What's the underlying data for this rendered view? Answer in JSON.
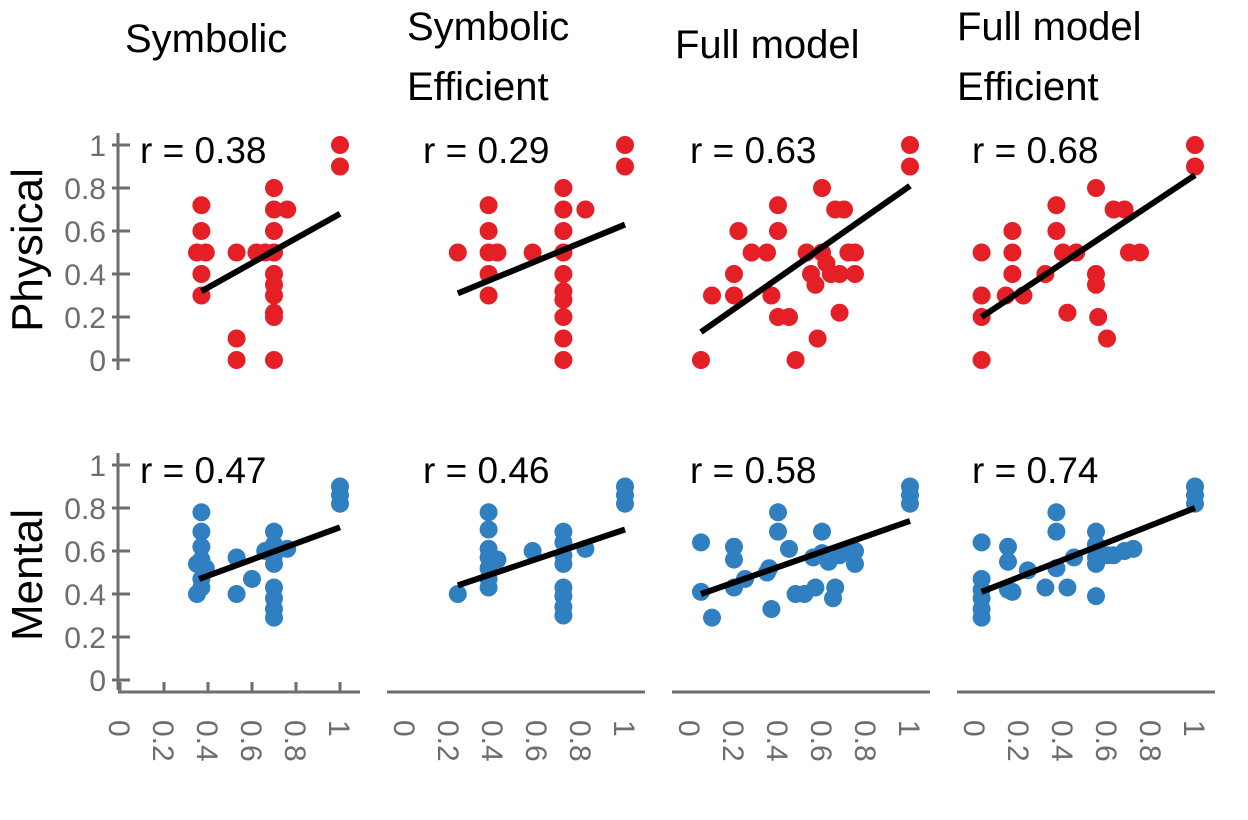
{
  "chart_data": {
    "type": "scatter",
    "columns": [
      "Symbolic",
      "Symbolic Efficient",
      "Full model",
      "Full model Efficient"
    ],
    "column_titles": [
      [
        "Symbolic"
      ],
      [
        "Symbolic",
        "Efficient"
      ],
      [
        "Full model"
      ],
      [
        "Full model",
        "Efficient"
      ]
    ],
    "rows": [
      "Physical",
      "Mental"
    ],
    "colors": {
      "Physical": "#e41f26",
      "Mental": "#2f7fc1",
      "fit": "#000000",
      "axis": "#6d6d6d"
    },
    "xlim": [
      0,
      1
    ],
    "ylim": [
      0,
      1
    ],
    "xticks": [
      "0",
      "0.2",
      "0.4",
      "0.6",
      "0.8",
      "1"
    ],
    "yticks": [
      "0",
      "0.2",
      "0.4",
      "0.6",
      "0.8",
      "1"
    ],
    "panels": [
      {
        "row": "Physical",
        "column": "Symbolic",
        "r_label": "r = 0.38",
        "fit": [
          [
            0.37,
            0.32
          ],
          [
            1.0,
            0.68
          ]
        ],
        "points": [
          [
            1.0,
            1.0
          ],
          [
            1.0,
            0.9
          ],
          [
            0.37,
            0.72
          ],
          [
            0.37,
            0.6
          ],
          [
            0.35,
            0.5
          ],
          [
            0.39,
            0.5
          ],
          [
            0.37,
            0.4
          ],
          [
            0.37,
            0.3
          ],
          [
            0.53,
            0.5
          ],
          [
            0.62,
            0.5
          ],
          [
            0.66,
            0.5
          ],
          [
            0.7,
            0.5
          ],
          [
            0.53,
            0.1
          ],
          [
            0.53,
            0.0
          ],
          [
            0.7,
            0.8
          ],
          [
            0.7,
            0.7
          ],
          [
            0.76,
            0.7
          ],
          [
            0.7,
            0.6
          ],
          [
            0.7,
            0.4
          ],
          [
            0.7,
            0.35
          ],
          [
            0.7,
            0.3
          ],
          [
            0.7,
            0.22
          ],
          [
            0.7,
            0.2
          ],
          [
            0.7,
            0.0
          ]
        ]
      },
      {
        "row": "Physical",
        "column": "Symbolic Efficient",
        "r_label": "r = 0.29",
        "fit": [
          [
            0.24,
            0.31
          ],
          [
            1.0,
            0.63
          ]
        ],
        "points": [
          [
            1.0,
            1.0
          ],
          [
            1.0,
            0.9
          ],
          [
            0.38,
            0.72
          ],
          [
            0.38,
            0.6
          ],
          [
            0.38,
            0.5
          ],
          [
            0.42,
            0.5
          ],
          [
            0.38,
            0.4
          ],
          [
            0.38,
            0.3
          ],
          [
            0.24,
            0.5
          ],
          [
            0.58,
            0.5
          ],
          [
            0.72,
            0.8
          ],
          [
            0.72,
            0.7
          ],
          [
            0.82,
            0.7
          ],
          [
            0.72,
            0.6
          ],
          [
            0.72,
            0.5
          ],
          [
            0.72,
            0.4
          ],
          [
            0.72,
            0.32
          ],
          [
            0.72,
            0.28
          ],
          [
            0.72,
            0.2
          ],
          [
            0.72,
            0.1
          ],
          [
            0.72,
            0.0
          ]
        ]
      },
      {
        "row": "Physical",
        "column": "Full model",
        "r_label": "r = 0.63",
        "fit": [
          [
            0.05,
            0.13
          ],
          [
            1.0,
            0.81
          ]
        ],
        "points": [
          [
            1.0,
            1.0
          ],
          [
            1.0,
            0.9
          ],
          [
            0.05,
            0.0
          ],
          [
            0.1,
            0.3
          ],
          [
            0.2,
            0.4
          ],
          [
            0.2,
            0.3
          ],
          [
            0.22,
            0.6
          ],
          [
            0.28,
            0.5
          ],
          [
            0.35,
            0.5
          ],
          [
            0.37,
            0.3
          ],
          [
            0.4,
            0.2
          ],
          [
            0.45,
            0.2
          ],
          [
            0.4,
            0.72
          ],
          [
            0.4,
            0.6
          ],
          [
            0.48,
            0.0
          ],
          [
            0.53,
            0.5
          ],
          [
            0.55,
            0.4
          ],
          [
            0.57,
            0.35
          ],
          [
            0.58,
            0.1
          ],
          [
            0.6,
            0.8
          ],
          [
            0.6,
            0.5
          ],
          [
            0.62,
            0.45
          ],
          [
            0.64,
            0.4
          ],
          [
            0.66,
            0.7
          ],
          [
            0.68,
            0.4
          ],
          [
            0.7,
            0.7
          ],
          [
            0.72,
            0.5
          ],
          [
            0.68,
            0.22
          ],
          [
            0.75,
            0.5
          ],
          [
            0.75,
            0.4
          ]
        ]
      },
      {
        "row": "Physical",
        "column": "Full model Efficient",
        "r_label": "r = 0.68",
        "fit": [
          [
            0.03,
            0.2
          ],
          [
            1.0,
            0.86
          ]
        ],
        "points": [
          [
            1.0,
            1.0
          ],
          [
            1.0,
            0.9
          ],
          [
            0.03,
            0.0
          ],
          [
            0.03,
            0.2
          ],
          [
            0.03,
            0.3
          ],
          [
            0.03,
            0.5
          ],
          [
            0.14,
            0.3
          ],
          [
            0.17,
            0.6
          ],
          [
            0.17,
            0.5
          ],
          [
            0.17,
            0.4
          ],
          [
            0.22,
            0.3
          ],
          [
            0.32,
            0.4
          ],
          [
            0.37,
            0.72
          ],
          [
            0.37,
            0.6
          ],
          [
            0.4,
            0.5
          ],
          [
            0.46,
            0.5
          ],
          [
            0.42,
            0.22
          ],
          [
            0.55,
            0.8
          ],
          [
            0.55,
            0.4
          ],
          [
            0.55,
            0.35
          ],
          [
            0.56,
            0.2
          ],
          [
            0.6,
            0.1
          ],
          [
            0.63,
            0.7
          ],
          [
            0.68,
            0.7
          ],
          [
            0.7,
            0.5
          ],
          [
            0.75,
            0.5
          ]
        ]
      },
      {
        "row": "Mental",
        "column": "Symbolic",
        "r_label": "r = 0.47",
        "fit": [
          [
            0.36,
            0.47
          ],
          [
            1.0,
            0.71
          ]
        ],
        "points": [
          [
            1.0,
            0.9
          ],
          [
            1.0,
            0.86
          ],
          [
            1.0,
            0.82
          ],
          [
            0.37,
            0.78
          ],
          [
            0.37,
            0.69
          ],
          [
            0.37,
            0.62
          ],
          [
            0.37,
            0.56
          ],
          [
            0.35,
            0.54
          ],
          [
            0.39,
            0.52
          ],
          [
            0.37,
            0.47
          ],
          [
            0.37,
            0.43
          ],
          [
            0.35,
            0.4
          ],
          [
            0.53,
            0.57
          ],
          [
            0.53,
            0.4
          ],
          [
            0.6,
            0.47
          ],
          [
            0.66,
            0.6
          ],
          [
            0.7,
            0.69
          ],
          [
            0.7,
            0.63
          ],
          [
            0.7,
            0.58
          ],
          [
            0.7,
            0.54
          ],
          [
            0.7,
            0.43
          ],
          [
            0.7,
            0.38
          ],
          [
            0.7,
            0.33
          ],
          [
            0.7,
            0.29
          ],
          [
            0.76,
            0.61
          ]
        ]
      },
      {
        "row": "Mental",
        "column": "Symbolic Efficient",
        "r_label": "r = 0.46",
        "fit": [
          [
            0.24,
            0.44
          ],
          [
            1.0,
            0.7
          ]
        ],
        "points": [
          [
            1.0,
            0.9
          ],
          [
            1.0,
            0.86
          ],
          [
            1.0,
            0.82
          ],
          [
            0.38,
            0.78
          ],
          [
            0.38,
            0.7
          ],
          [
            0.38,
            0.61
          ],
          [
            0.38,
            0.57
          ],
          [
            0.42,
            0.56
          ],
          [
            0.38,
            0.52
          ],
          [
            0.38,
            0.47
          ],
          [
            0.38,
            0.43
          ],
          [
            0.24,
            0.4
          ],
          [
            0.58,
            0.6
          ],
          [
            0.72,
            0.69
          ],
          [
            0.72,
            0.64
          ],
          [
            0.72,
            0.58
          ],
          [
            0.72,
            0.54
          ],
          [
            0.72,
            0.43
          ],
          [
            0.72,
            0.39
          ],
          [
            0.72,
            0.34
          ],
          [
            0.72,
            0.3
          ],
          [
            0.82,
            0.61
          ]
        ]
      },
      {
        "row": "Mental",
        "column": "Full model",
        "r_label": "r = 0.58",
        "fit": [
          [
            0.05,
            0.4
          ],
          [
            1.0,
            0.74
          ]
        ],
        "points": [
          [
            1.0,
            0.9
          ],
          [
            1.0,
            0.86
          ],
          [
            1.0,
            0.82
          ],
          [
            0.05,
            0.64
          ],
          [
            0.05,
            0.41
          ],
          [
            0.1,
            0.29
          ],
          [
            0.2,
            0.62
          ],
          [
            0.2,
            0.56
          ],
          [
            0.2,
            0.43
          ],
          [
            0.25,
            0.47
          ],
          [
            0.35,
            0.5
          ],
          [
            0.36,
            0.52
          ],
          [
            0.37,
            0.33
          ],
          [
            0.4,
            0.78
          ],
          [
            0.4,
            0.69
          ],
          [
            0.45,
            0.61
          ],
          [
            0.48,
            0.4
          ],
          [
            0.52,
            0.4
          ],
          [
            0.56,
            0.57
          ],
          [
            0.57,
            0.43
          ],
          [
            0.6,
            0.69
          ],
          [
            0.6,
            0.59
          ],
          [
            0.63,
            0.55
          ],
          [
            0.65,
            0.38
          ],
          [
            0.66,
            0.43
          ],
          [
            0.68,
            0.58
          ],
          [
            0.72,
            0.61
          ],
          [
            0.75,
            0.6
          ],
          [
            0.75,
            0.54
          ]
        ]
      },
      {
        "row": "Mental",
        "column": "Full model Efficient",
        "r_label": "r = 0.74",
        "fit": [
          [
            0.03,
            0.41
          ],
          [
            1.0,
            0.8
          ]
        ],
        "points": [
          [
            1.0,
            0.9
          ],
          [
            1.0,
            0.86
          ],
          [
            1.0,
            0.82
          ],
          [
            0.03,
            0.64
          ],
          [
            0.03,
            0.47
          ],
          [
            0.03,
            0.42
          ],
          [
            0.03,
            0.38
          ],
          [
            0.03,
            0.33
          ],
          [
            0.03,
            0.29
          ],
          [
            0.15,
            0.62
          ],
          [
            0.15,
            0.55
          ],
          [
            0.15,
            0.42
          ],
          [
            0.17,
            0.41
          ],
          [
            0.24,
            0.51
          ],
          [
            0.32,
            0.43
          ],
          [
            0.37,
            0.78
          ],
          [
            0.37,
            0.69
          ],
          [
            0.37,
            0.52
          ],
          [
            0.42,
            0.43
          ],
          [
            0.45,
            0.57
          ],
          [
            0.55,
            0.69
          ],
          [
            0.55,
            0.63
          ],
          [
            0.55,
            0.57
          ],
          [
            0.55,
            0.54
          ],
          [
            0.55,
            0.39
          ],
          [
            0.6,
            0.58
          ],
          [
            0.63,
            0.58
          ],
          [
            0.68,
            0.6
          ],
          [
            0.72,
            0.61
          ]
        ]
      }
    ]
  }
}
